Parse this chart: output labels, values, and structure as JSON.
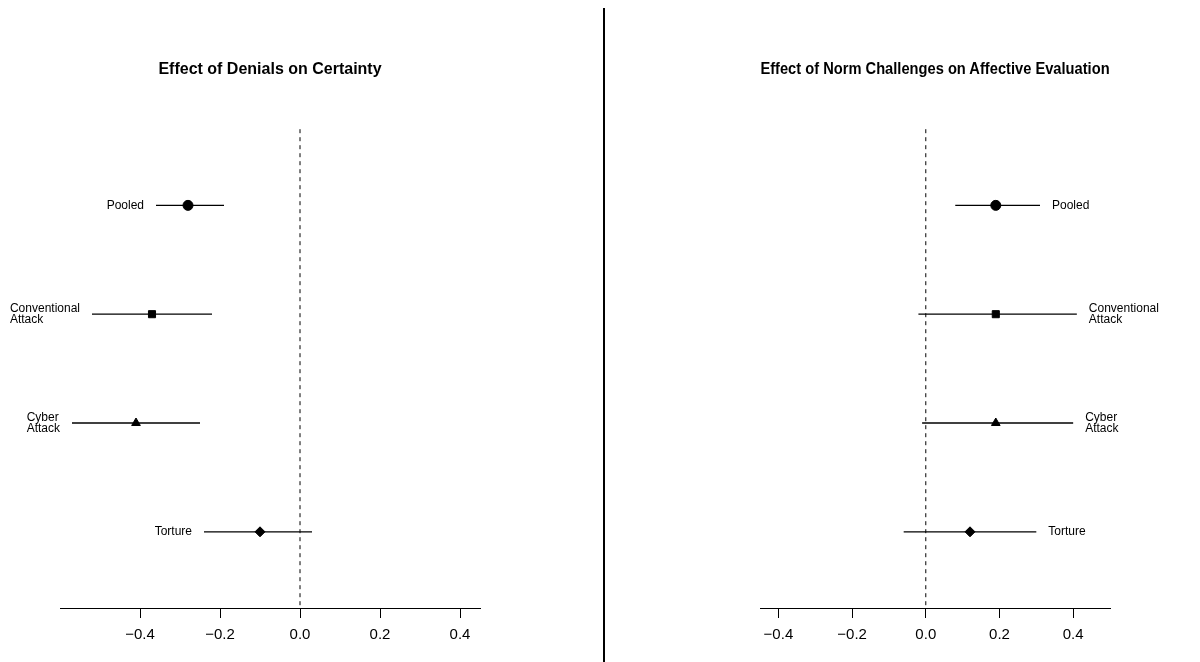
{
  "chart_data": [
    {
      "type": "scatter",
      "title": "Effect of Denials on Certainty",
      "orientation": "horizontal",
      "categories": [
        "Pooled",
        "Conventional Attack",
        "Cyber Attack",
        "Torture"
      ],
      "series": [
        {
          "marker": "circle",
          "color": "#000000",
          "values": [
            -0.28,
            null,
            null,
            null
          ],
          "errors": [
            [
              -0.36,
              -0.19
            ],
            null,
            null,
            null
          ]
        },
        {
          "marker": "square",
          "color": "#000000",
          "values": [
            null,
            -0.37,
            null,
            null
          ],
          "errors": [
            null,
            [
              -0.52,
              -0.22
            ],
            null,
            null
          ]
        },
        {
          "marker": "triangle",
          "color": "#000000",
          "values": [
            null,
            null,
            -0.41,
            null
          ],
          "errors": [
            null,
            null,
            [
              -0.57,
              -0.25
            ],
            null
          ]
        },
        {
          "marker": "diamond",
          "color": "#000000",
          "values": [
            null,
            null,
            null,
            -0.1
          ],
          "errors": [
            null,
            null,
            null,
            [
              -0.24,
              0.03
            ]
          ]
        }
      ],
      "xlim": [
        -0.6,
        0.45
      ],
      "xticks": [
        {
          "value": -0.4,
          "label": "−0.4"
        },
        {
          "value": -0.2,
          "label": "−0.2"
        },
        {
          "value": 0,
          "label": "0.0"
        },
        {
          "value": 0.2,
          "label": "0.2"
        },
        {
          "value": 0.4,
          "label": "0.4"
        }
      ],
      "ref_lines": [
        {
          "axis": "x",
          "value": 0,
          "line_style": "dashed"
        }
      ],
      "grid": false,
      "legend": false,
      "tick_labels": "x"
    },
    {
      "type": "scatter",
      "title": "Effect of Norm Challenges on Affective Evaluation",
      "orientation": "horizontal",
      "categories": [
        "Pooled",
        "Conventional Attack",
        "Cyber Attack",
        "Torture"
      ],
      "series": [
        {
          "marker": "circle",
          "color": "#000000",
          "values": [
            0.19,
            null,
            null,
            null
          ],
          "errors": [
            [
              0.08,
              0.31
            ],
            null,
            null,
            null
          ]
        },
        {
          "marker": "square",
          "color": "#000000",
          "values": [
            null,
            0.19,
            null,
            null
          ],
          "errors": [
            null,
            [
              -0.02,
              0.41
            ],
            null,
            null
          ]
        },
        {
          "marker": "triangle",
          "color": "#000000",
          "values": [
            null,
            null,
            0.19,
            null
          ],
          "errors": [
            null,
            null,
            [
              -0.01,
              0.4
            ],
            null
          ]
        },
        {
          "marker": "diamond",
          "color": "#000000",
          "values": [
            null,
            null,
            null,
            0.12
          ],
          "errors": [
            null,
            null,
            null,
            [
              -0.06,
              0.3
            ]
          ]
        }
      ],
      "xlim": [
        -0.45,
        0.5
      ],
      "xticks": [
        {
          "value": -0.4,
          "label": "−0.4"
        },
        {
          "value": -0.2,
          "label": "−0.2"
        },
        {
          "value": 0,
          "label": "0.0"
        },
        {
          "value": 0.2,
          "label": "0.2"
        },
        {
          "value": 0.4,
          "label": "0.4"
        }
      ],
      "ref_lines": [
        {
          "axis": "x",
          "value": 0,
          "line_style": "dashed"
        }
      ],
      "grid": false,
      "legend": false,
      "tick_labels": "x"
    }
  ]
}
